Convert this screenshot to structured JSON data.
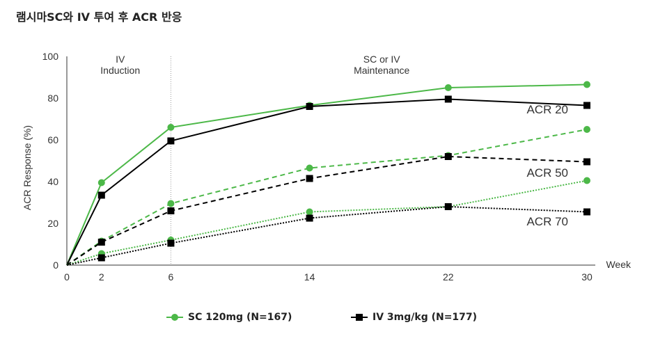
{
  "page_title": "램시마SC와 IV 투여 후 ACR 반응",
  "chart_data": {
    "type": "line",
    "title": "램시마SC와 IV 투여 후 ACR 반응",
    "xlabel": "Week",
    "ylabel": "ACR Response (%)",
    "x": [
      0,
      2,
      6,
      14,
      22,
      30
    ],
    "xlim": [
      0,
      30
    ],
    "ylim": [
      0,
      100
    ],
    "yticks": [
      0,
      20,
      40,
      60,
      80,
      100
    ],
    "xticks": [
      0,
      2,
      6,
      14,
      22,
      30
    ],
    "phases": [
      {
        "label_line1": "IV",
        "label_line2": "Induction"
      },
      {
        "label_line1": "SC or IV",
        "label_line2": "Maintenance"
      }
    ],
    "phase_boundary_week": 6,
    "series": [
      {
        "name": "SC 120mg (N=167) ACR 20",
        "group": "SC 120mg (N=167)",
        "measure": "ACR 20",
        "style": "solid",
        "marker": "circle",
        "color": "#4cb848",
        "values": [
          0,
          39.5,
          66,
          76.5,
          85,
          86.5
        ]
      },
      {
        "name": "IV 3mg/kg (N=177) ACR 20",
        "group": "IV 3mg/kg (N=177)",
        "measure": "ACR 20",
        "style": "solid",
        "marker": "square",
        "color": "#000000",
        "values": [
          0,
          33.5,
          59.5,
          76,
          79.5,
          76.5
        ]
      },
      {
        "name": "SC 120mg (N=167) ACR 50",
        "group": "SC 120mg (N=167)",
        "measure": "ACR 50",
        "style": "dashed",
        "marker": "circle",
        "color": "#4cb848",
        "values": [
          0,
          11.5,
          29.5,
          46.5,
          52.5,
          65
        ]
      },
      {
        "name": "IV 3mg/kg (N=177) ACR 50",
        "group": "IV 3mg/kg (N=177)",
        "measure": "ACR 50",
        "style": "dashed",
        "marker": "square",
        "color": "#000000",
        "values": [
          0,
          11,
          26,
          41.5,
          52,
          49.5
        ]
      },
      {
        "name": "SC 120mg (N=167) ACR 70",
        "group": "SC 120mg (N=167)",
        "measure": "ACR 70",
        "style": "dotted",
        "marker": "circle",
        "color": "#4cb848",
        "values": [
          0,
          5.5,
          12,
          25.5,
          28,
          40.5
        ]
      },
      {
        "name": "IV 3mg/kg (N=177) ACR 70",
        "group": "IV 3mg/kg (N=177)",
        "measure": "ACR 70",
        "style": "dotted",
        "marker": "square",
        "color": "#000000",
        "values": [
          0,
          3.5,
          10.5,
          22.5,
          28,
          25.5
        ]
      }
    ],
    "series_labels": [
      "ACR 20",
      "ACR 50",
      "ACR 70"
    ],
    "legend": [
      {
        "label": "SC 120mg (N=167)",
        "marker": "circle",
        "color": "#4cb848"
      },
      {
        "label": "IV 3mg/kg (N=177)",
        "marker": "square",
        "color": "#000000"
      }
    ],
    "legend_position": "bottom-center",
    "grid": false
  }
}
